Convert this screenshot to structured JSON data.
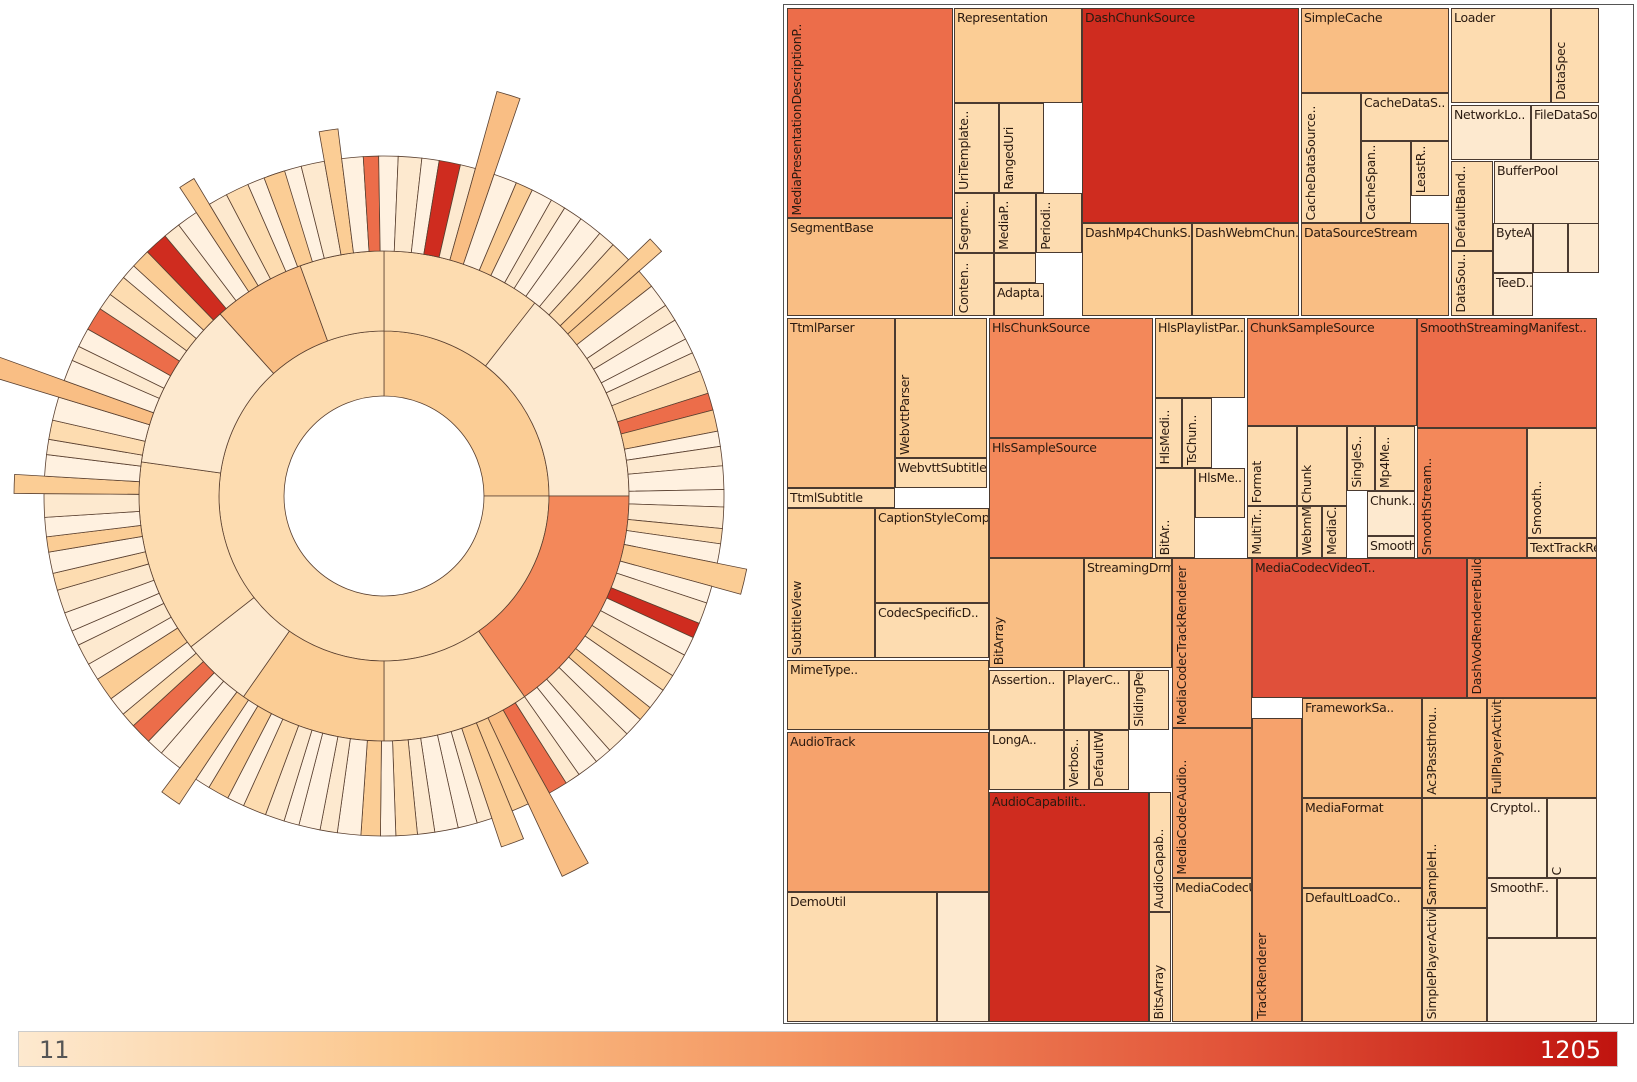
{
  "chart_data": [
    {
      "type": "sunburst",
      "rings": 3,
      "note_colors": "color encodes value on the shared legend scale"
    },
    {
      "type": "treemap",
      "color_scale": {
        "min": 11,
        "max": 1205,
        "colors": [
          "#fde9cf",
          "#fbc58a",
          "#f3925f",
          "#e2553a",
          "#c0140f"
        ]
      },
      "labels": [
        "MediaPresentationDescriptionP..",
        "Representation",
        "DashChunkSource",
        "SimpleCache",
        "Loader",
        "DataSpec",
        "NetworkLo..",
        "FileDataSo..",
        "UriTemplate..",
        "RangedUri",
        "CacheDataS..",
        "CacheDataSource..",
        "CacheSpan..",
        "LeastR..",
        "BufferPool",
        "DefaultBand..",
        "SegmentBase",
        "Segme..",
        "MediaP..",
        "Periodi..",
        "Conten..",
        "Adapta..",
        "DashMp4ChunkS..",
        "DashWebmChun..",
        "DataSourceStream",
        "DataSou..",
        "ByteA..",
        "TeeD..",
        "TtmlParser",
        "WebvttParser",
        "WebvttSubtitle..",
        "TtmlSubtitle",
        "HlsChunkSource",
        "HlsPlaylistPar..",
        "ChunkSampleSource",
        "SmoothStreamingManifest..",
        "HlsMedi..",
        "TsChun..",
        "HlsSampleSource",
        "BitAr..",
        "HlsMe..",
        "Format",
        "Chunk",
        "SingleS..",
        "Mp4Me..",
        "MultiTr..",
        "WebmM..",
        "MediaC..",
        "Chunk..",
        "SmoothStreaming..",
        "SmoothStream..",
        "Smooth..",
        "TextTrackRenderer",
        "SubtitleView",
        "CaptionStyleComp..",
        "CodecSpecificD..",
        "BitArray",
        "StreamingDrmSessionM..",
        "MediaCodecTrackRenderer",
        "MediaCodecVideoT..",
        "DashVodRendererBuilder",
        "MimeType..",
        "Assertion..",
        "PlayerC..",
        "SlidingPerc..",
        "LongA..",
        "Verbos..",
        "DefaultWebmExtracto..",
        "MediaCodecAudio..",
        "FrameworkSa..",
        "Ac3Passthrou..",
        "FullPlayerActivity",
        "AudioTrack",
        "AudioCapabilit..",
        "AudioCapab..",
        "BitsArray",
        "MediaCodecUtil",
        "TrackRenderer",
        "MediaFormat",
        "DefaultLoadCo..",
        "SampleH..",
        "Cryptol..",
        "C",
        "SmoothF..",
        "SimplePlayerActivity",
        "DemoUtil"
      ]
    }
  ],
  "legend": {
    "min_label": "11",
    "max_label": "1205"
  }
}
